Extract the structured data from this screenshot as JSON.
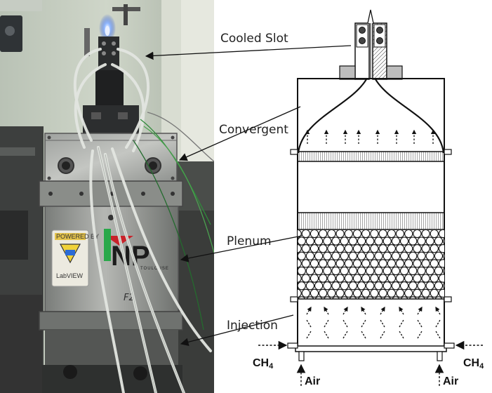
{
  "labels": {
    "cooled_slot": "Cooled Slot",
    "convergent": "Convergent",
    "plenum": "Plenum",
    "injection": "Injection"
  },
  "gases": {
    "left_fuel": "CH",
    "right_fuel": "CH",
    "fuel_subscript": "4",
    "left_air": "Air",
    "right_air": "Air"
  },
  "photo": {
    "badge_top": "POWERED BY",
    "badge_name": "LabVIEW",
    "logo": "NP",
    "logo_sub": "TOULOUSE",
    "handwriting": "F2"
  }
}
